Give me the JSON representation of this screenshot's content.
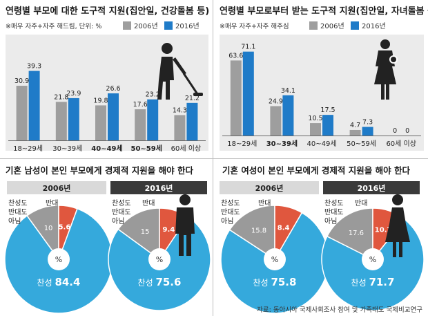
{
  "colors": {
    "y2006": "#9e9e9e",
    "y2016": "#1f7bc8",
    "pie_yes": "#35a9dc",
    "pie_neutral": "#9a9a9a",
    "pie_no": "#e0573e",
    "panel_bg": "#ebebeb",
    "header_dark": "#3a3a3a",
    "header_light": "#d9d9d9"
  },
  "chart_data": [
    {
      "type": "bar",
      "title": "연령별 부모에 대한 도구적 지원(집안일, 건강돌봄 등)",
      "note": "※매우 자주+자주 해드림, 단위: %",
      "categories": [
        "18~29세",
        "30~39세",
        "40~49세",
        "50~59세",
        "60세 이상"
      ],
      "bold_categories": [
        2,
        3
      ],
      "series": [
        {
          "name": "2006년",
          "values": [
            30.9,
            21.8,
            19.8,
            17.6,
            14.3
          ]
        },
        {
          "name": "2016년",
          "values": [
            39.3,
            23.9,
            26.6,
            23.2,
            21.2
          ]
        }
      ],
      "ylim": [
        0,
        45
      ],
      "icon": "vacuum-person-icon"
    },
    {
      "type": "bar",
      "title": "연령별 부모로부터 받는 도구적 지원(집안일, 자녀돌봄 등)",
      "note": "※매우 자주+자주 해주심",
      "categories": [
        "18~29세",
        "30~39세",
        "40~49세",
        "50~59세",
        "60세 이상"
      ],
      "bold_categories": [
        1
      ],
      "series": [
        {
          "name": "2006년",
          "values": [
            63.6,
            24.9,
            10.5,
            4.7,
            0
          ]
        },
        {
          "name": "2016년",
          "values": [
            71.1,
            34.1,
            17.5,
            7.3,
            0
          ]
        }
      ],
      "ylim": [
        0,
        75
      ],
      "icon": "mother-baby-icon"
    }
  ],
  "pie_section_titles": [
    "기혼 남성이 본인 부모에게 경제적 지원을 해야 한다",
    "기혼 여성이 본인 부모에게 경제적 지원을 해야 한다"
  ],
  "pie_labels": {
    "yes": "찬성",
    "neutral": "찬성도\n반대도\n아님",
    "no": "반대",
    "unit": "%"
  },
  "pies": [
    {
      "year": "2006년",
      "yes": 84.4,
      "neutral": 10,
      "no": 5.6
    },
    {
      "year": "2016년",
      "yes": 75.6,
      "neutral": 15,
      "no": 9.4
    },
    {
      "year": "2006년",
      "yes": 75.8,
      "neutral": 15.8,
      "no": 8.4
    },
    {
      "year": "2016년",
      "yes": 71.7,
      "neutral": 17.6,
      "no": 10.7
    }
  ],
  "source": "자료: 동아시아 국제사회조사 참여 및 가족태도 국제비교연구"
}
